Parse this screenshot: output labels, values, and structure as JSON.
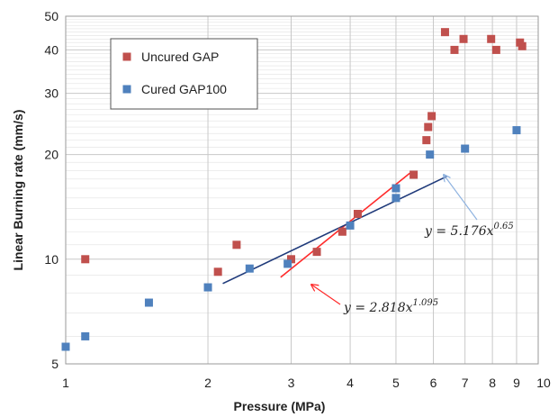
{
  "chart_data": {
    "type": "scatter",
    "xlabel": "Pressure (MPa)",
    "ylabel": "Linear Burning rate (mm/s)",
    "xscale": "log",
    "yscale": "log",
    "xlim": [
      1,
      10
    ],
    "ylim": [
      5,
      50
    ],
    "x_ticks": [
      1,
      2,
      3,
      4,
      5,
      6,
      7,
      8,
      9,
      10
    ],
    "x_tick_labels": [
      "1",
      "2",
      "3",
      "4",
      "5",
      "6",
      "7",
      "8",
      "9",
      "10"
    ],
    "y_ticks": [
      5,
      10,
      20,
      30,
      40,
      50
    ],
    "y_tick_labels": [
      "5",
      "10",
      "20",
      "30",
      "40",
      "50"
    ],
    "grid": true,
    "legend": "top-left",
    "series": [
      {
        "name": "Uncured GAP",
        "color": "#c0504d",
        "marker": "square",
        "points": [
          [
            1.1,
            10.0
          ],
          [
            2.1,
            9.2
          ],
          [
            2.3,
            11.0
          ],
          [
            3.0,
            10.0
          ],
          [
            3.4,
            10.5
          ],
          [
            3.85,
            12.0
          ],
          [
            4.15,
            13.5
          ],
          [
            5.45,
            17.5
          ],
          [
            5.8,
            22.0
          ],
          [
            5.85,
            24.0
          ],
          [
            5.95,
            25.8
          ],
          [
            6.35,
            45.0
          ],
          [
            6.65,
            40.0
          ],
          [
            6.95,
            43.0
          ],
          [
            7.95,
            43.0
          ],
          [
            8.15,
            40.0
          ],
          [
            9.15,
            42.0
          ],
          [
            9.25,
            41.0
          ]
        ]
      },
      {
        "name": "Cured GAP100",
        "color": "#4f81bd",
        "marker": "square",
        "points": [
          [
            1.0,
            5.6
          ],
          [
            1.1,
            6.0
          ],
          [
            1.5,
            7.5
          ],
          [
            2.0,
            8.3
          ],
          [
            2.45,
            9.4
          ],
          [
            2.95,
            9.7
          ],
          [
            4.0,
            12.5
          ],
          [
            5.0,
            15.0
          ],
          [
            5.0,
            16.0
          ],
          [
            5.9,
            20.0
          ],
          [
            7.0,
            20.8
          ],
          [
            9.0,
            23.5
          ]
        ]
      }
    ],
    "fits": [
      {
        "color": "#ff2a2a",
        "coef": 2.818,
        "exponent": 1.095,
        "x_range": [
          2.85,
          5.35
        ],
        "label": "y = 2.818x",
        "label_exponent": "1.095"
      },
      {
        "color": "#1f3a7a",
        "coef": 5.176,
        "exponent": 0.65,
        "x_range": [
          2.15,
          6.4
        ],
        "label": "y = 5.176x",
        "label_exponent": "0.65"
      }
    ]
  }
}
